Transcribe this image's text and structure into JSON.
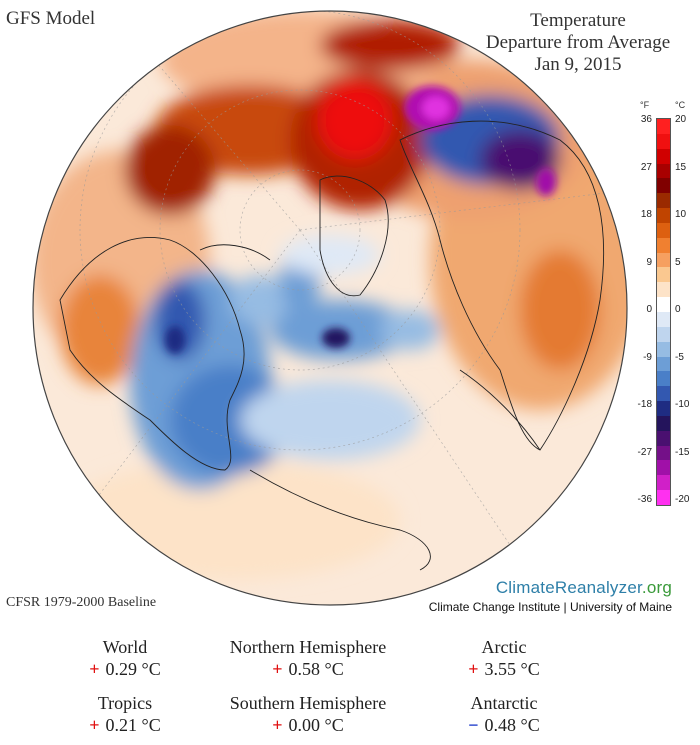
{
  "header": {
    "model": "GFS Model",
    "title_lines": [
      "Temperature",
      "Departure from Average",
      "Jan 9, 2015"
    ]
  },
  "colorbar": {
    "unit_f": "°F",
    "unit_c": "°C",
    "ticks_f": [
      "36",
      "27",
      "18",
      "9",
      "0",
      "-9",
      "-18",
      "-27",
      "-36"
    ],
    "ticks_c": [
      "20",
      "15",
      "10",
      "5",
      "0",
      "-5",
      "-10",
      "-15",
      "-20"
    ],
    "colors": [
      "#ff2020",
      "#f01010",
      "#d00000",
      "#a80000",
      "#800000",
      "#9a2a00",
      "#c04400",
      "#dd6010",
      "#f08030",
      "#f6a060",
      "#fac890",
      "#fde3c8",
      "#ffffff",
      "#dfe9f6",
      "#bfd5ee",
      "#96bce3",
      "#6d9ed6",
      "#4a7fc8",
      "#3358b0",
      "#1f2c82",
      "#24145c",
      "#4a1070",
      "#741088",
      "#a010a8",
      "#d020c8",
      "#ff30f0"
    ]
  },
  "footer": {
    "baseline": "CFSR 1979-2000 Baseline",
    "brand_part1": "ClimateReanalyzer",
    "brand_part2": ".org",
    "brand_sub": "Climate Change Institute | University of Maine",
    "colors": {
      "brand_blue": "#2e7fa8",
      "brand_green": "#3a9a3a"
    }
  },
  "stats": [
    {
      "region": "World",
      "sign": "+",
      "value": "0.29 °C"
    },
    {
      "region": "Northern Hemisphere",
      "sign": "+",
      "value": "0.58 °C"
    },
    {
      "region": "Arctic",
      "sign": "+",
      "value": "3.55 °C"
    },
    {
      "region": "Tropics",
      "sign": "+",
      "value": "0.21 °C"
    },
    {
      "region": "Southern Hemisphere",
      "sign": "+",
      "value": "0.00 °C"
    },
    {
      "region": "Antarctic",
      "sign": "−",
      "value": "0.48 °C"
    }
  ]
}
